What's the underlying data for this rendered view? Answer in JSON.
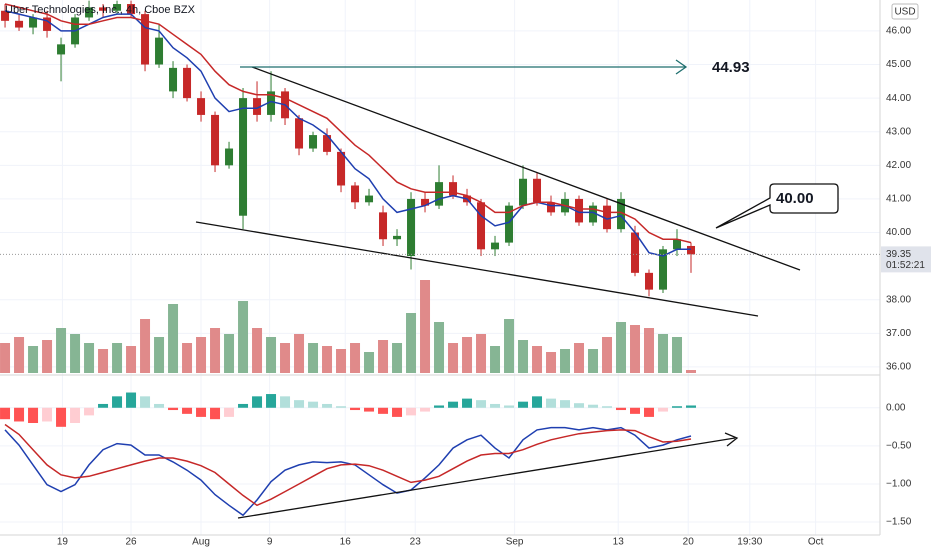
{
  "chart_data": {
    "type": "candlestick",
    "title": "Uber Technologies, Inc., 4h, Cboe BZX",
    "currency": "USD",
    "x": [
      0,
      1,
      2,
      3,
      4,
      5,
      6,
      7,
      8,
      9,
      10,
      11,
      12,
      13,
      14,
      15,
      16,
      17,
      18,
      19,
      20,
      21,
      22,
      23,
      24,
      25,
      26,
      27,
      28,
      29,
      30,
      31,
      32,
      33,
      34,
      35,
      36,
      37,
      38,
      39,
      40,
      41,
      42,
      43,
      44,
      45,
      46,
      47,
      48,
      49
    ],
    "xlim": [
      -0.36,
      62.5
    ],
    "xticks": [
      {
        "value": 4.1,
        "label": "19"
      },
      {
        "value": 9,
        "label": "26"
      },
      {
        "value": 14,
        "label": "Aug"
      },
      {
        "value": 18.9,
        "label": "9"
      },
      {
        "value": 24.3,
        "label": "16"
      },
      {
        "value": 29.3,
        "label": "23"
      },
      {
        "value": 36.4,
        "label": "Sep"
      },
      {
        "value": 43.8,
        "label": "13"
      },
      {
        "value": 48.8,
        "label": "20"
      },
      {
        "value": 53.2,
        "label": "19:30"
      },
      {
        "value": 57.9,
        "label": "Oct"
      }
    ],
    "open": [
      46.6,
      46.3,
      46.1,
      46.4,
      45.3,
      45.6,
      46.4,
      46.7,
      46.6,
      46.8,
      46.5,
      45.0,
      44.2,
      44.9,
      44.0,
      43.5,
      42.0,
      40.5,
      44.0,
      43.5,
      44.2,
      43.4,
      42.5,
      42.9,
      42.4,
      41.4,
      40.9,
      40.6,
      39.8,
      39.3,
      41.0,
      40.8,
      41.5,
      41.1,
      40.9,
      39.5,
      39.7,
      40.8,
      41.6,
      40.9,
      40.6,
      41.0,
      40.3,
      40.8,
      40.1,
      40.0,
      38.8,
      38.3,
      39.5,
      39.6
    ],
    "high": [
      46.8,
      46.5,
      46.5,
      46.6,
      45.8,
      46.5,
      46.9,
      46.8,
      46.9,
      46.9,
      46.6,
      46.2,
      45.1,
      45.0,
      44.2,
      43.6,
      42.7,
      44.3,
      44.5,
      44.8,
      44.3,
      43.5,
      43.0,
      43.1,
      42.5,
      41.5,
      41.3,
      40.8,
      40.1,
      41.2,
      41.2,
      42.0,
      41.7,
      41.3,
      41.0,
      39.9,
      40.9,
      42.0,
      41.8,
      41.1,
      41.2,
      41.1,
      40.9,
      41.0,
      41.2,
      40.2,
      38.9,
      39.6,
      40.1,
      39.7
    ],
    "low": [
      46.1,
      46.0,
      45.9,
      45.8,
      44.5,
      45.5,
      46.3,
      46.4,
      46.5,
      46.4,
      44.8,
      44.9,
      44.0,
      43.9,
      43.3,
      41.8,
      41.9,
      40.1,
      43.3,
      43.3,
      43.2,
      42.3,
      42.4,
      42.3,
      41.2,
      40.7,
      40.8,
      39.6,
      39.6,
      38.9,
      40.6,
      40.7,
      41.0,
      40.8,
      39.3,
      39.3,
      39.6,
      40.7,
      40.8,
      40.5,
      40.5,
      40.2,
      40.2,
      40.0,
      40.0,
      38.7,
      38.1,
      38.2,
      39.3,
      38.8
    ],
    "close": [
      46.3,
      46.1,
      46.4,
      46.0,
      45.6,
      46.4,
      46.7,
      46.6,
      46.8,
      46.5,
      45.0,
      45.8,
      44.9,
      44.0,
      43.5,
      42.0,
      42.5,
      44.0,
      43.5,
      44.2,
      43.4,
      42.5,
      42.9,
      42.4,
      41.4,
      40.9,
      41.1,
      39.8,
      39.9,
      41.0,
      40.8,
      41.5,
      41.1,
      40.9,
      39.5,
      39.7,
      40.8,
      41.6,
      40.9,
      40.6,
      41.0,
      40.3,
      40.8,
      40.1,
      41.0,
      38.8,
      38.3,
      39.5,
      39.8,
      39.35
    ],
    "up_color": "#2e7d32",
    "down_color": "#c62828",
    "ylim": [
      35.76,
      46.92
    ],
    "yticks": [
      {
        "value": 36,
        "label": "36.00"
      },
      {
        "value": 37,
        "label": "37.00"
      },
      {
        "value": 38,
        "label": "38.00"
      },
      {
        "value": 39.35,
        "label": "39.35"
      },
      {
        "value": 40,
        "label": "40.00"
      },
      {
        "value": 41,
        "label": "41.00"
      },
      {
        "value": 42,
        "label": "42.00"
      },
      {
        "value": 43,
        "label": "43.00"
      },
      {
        "value": 44,
        "label": "44.00"
      },
      {
        "value": 45,
        "label": "45.00"
      },
      {
        "value": 46,
        "label": "46.00"
      }
    ],
    "last_price_countdown": "01:52:21",
    "grid": true,
    "series": [
      {
        "color": "#1f3fb0",
        "values": [
          46.6,
          46.5,
          46.4,
          46.3,
          46.0,
          46.0,
          46.2,
          46.4,
          46.5,
          46.5,
          46.1,
          46.0,
          45.5,
          45.2,
          44.8,
          44.0,
          43.6,
          43.7,
          43.7,
          43.9,
          43.8,
          43.4,
          43.2,
          42.9,
          42.4,
          41.9,
          41.6,
          41.0,
          40.6,
          40.7,
          40.8,
          41.0,
          41.1,
          41.0,
          40.5,
          40.2,
          40.3,
          40.8,
          40.9,
          40.8,
          40.8,
          40.6,
          40.6,
          40.4,
          40.5,
          40.0,
          39.4,
          39.3,
          39.5,
          39.5
        ]
      },
      {
        "color": "#c62828",
        "values": [
          46.8,
          46.7,
          46.6,
          46.5,
          46.3,
          46.2,
          46.2,
          46.3,
          46.4,
          46.4,
          46.3,
          46.2,
          45.9,
          45.6,
          45.3,
          44.8,
          44.4,
          44.2,
          44.1,
          44.1,
          44.0,
          43.8,
          43.6,
          43.4,
          43.0,
          42.6,
          42.3,
          41.9,
          41.5,
          41.3,
          41.2,
          41.2,
          41.2,
          41.1,
          40.9,
          40.6,
          40.6,
          40.8,
          40.9,
          40.9,
          40.8,
          40.7,
          40.7,
          40.6,
          40.6,
          40.4,
          40.0,
          39.8,
          39.8,
          39.7
        ]
      }
    ],
    "volume": [
      1.0,
      1.2,
      0.9,
      1.1,
      1.5,
      1.3,
      1.0,
      0.8,
      1.0,
      0.9,
      1.8,
      1.2,
      2.3,
      1.0,
      1.2,
      1.5,
      1.3,
      2.4,
      1.5,
      1.2,
      1.0,
      1.3,
      1.0,
      0.9,
      0.8,
      1.0,
      0.7,
      1.1,
      1.0,
      2.0,
      3.1,
      1.7,
      1.0,
      1.2,
      1.3,
      0.9,
      1.8,
      1.1,
      0.9,
      0.7,
      0.8,
      1.0,
      0.8,
      1.2,
      1.7,
      1.6,
      1.5,
      1.3,
      1.2,
      0.1
    ],
    "volume_up_color": "#86b594",
    "volume_down_color": "#e08a8a",
    "annotations": {
      "target": "44.93",
      "callout": "40.00"
    },
    "macd": {
      "ylim": [
        -1.67,
        0.43
      ],
      "yticks": [
        {
          "value": 0,
          "label": "0.00"
        },
        {
          "value": -0.5,
          "label": "−0.50"
        },
        {
          "value": -1,
          "label": "−1.00"
        },
        {
          "value": -1.5,
          "label": "−1.50"
        }
      ],
      "histogram": [
        -0.15,
        -0.18,
        -0.2,
        -0.18,
        -0.25,
        -0.2,
        -0.1,
        0.05,
        0.15,
        0.2,
        0.15,
        0.05,
        -0.03,
        -0.08,
        -0.12,
        -0.15,
        -0.12,
        0.05,
        0.15,
        0.18,
        0.15,
        0.1,
        0.08,
        0.05,
        0.02,
        -0.03,
        -0.05,
        -0.08,
        -0.12,
        -0.1,
        -0.05,
        0.03,
        0.08,
        0.12,
        0.1,
        0.05,
        0.03,
        0.08,
        0.15,
        0.12,
        0.1,
        0.06,
        0.04,
        0.02,
        -0.03,
        -0.08,
        -0.12,
        -0.05,
        0.02,
        0.03
      ],
      "hist_colors": {
        "up_strong": "#26a69a",
        "up_weak": "#b2dfdb",
        "down_strong": "#ff5252",
        "down_weak": "#ffcdd2"
      },
      "series": [
        {
          "color": "#1f3fb0",
          "values": [
            -0.29,
            -0.49,
            -0.75,
            -1.01,
            -1.1,
            -1.01,
            -0.75,
            -0.55,
            -0.47,
            -0.49,
            -0.62,
            -0.62,
            -0.71,
            -0.82,
            -0.95,
            -1.14,
            -1.28,
            -1.41,
            -1.21,
            -0.97,
            -0.82,
            -0.75,
            -0.71,
            -0.72,
            -0.71,
            -0.75,
            -0.88,
            -1.01,
            -1.12,
            -1.08,
            -0.92,
            -0.75,
            -0.53,
            -0.42,
            -0.36,
            -0.53,
            -0.66,
            -0.42,
            -0.29,
            -0.26,
            -0.26,
            -0.29,
            -0.26,
            -0.29,
            -0.26,
            -0.36,
            -0.53,
            -0.49,
            -0.42,
            -0.37
          ]
        },
        {
          "color": "#c62828",
          "values": [
            -0.22,
            -0.35,
            -0.55,
            -0.75,
            -0.88,
            -0.92,
            -0.9,
            -0.85,
            -0.8,
            -0.75,
            -0.7,
            -0.66,
            -0.66,
            -0.7,
            -0.76,
            -0.85,
            -1.0,
            -1.15,
            -1.28,
            -1.2,
            -1.1,
            -1.0,
            -0.9,
            -0.8,
            -0.75,
            -0.74,
            -0.76,
            -0.82,
            -0.9,
            -0.98,
            -0.95,
            -0.9,
            -0.8,
            -0.7,
            -0.62,
            -0.6,
            -0.6,
            -0.55,
            -0.48,
            -0.42,
            -0.38,
            -0.34,
            -0.32,
            -0.3,
            -0.29,
            -0.3,
            -0.38,
            -0.45,
            -0.44,
            -0.41
          ]
        }
      ]
    }
  }
}
